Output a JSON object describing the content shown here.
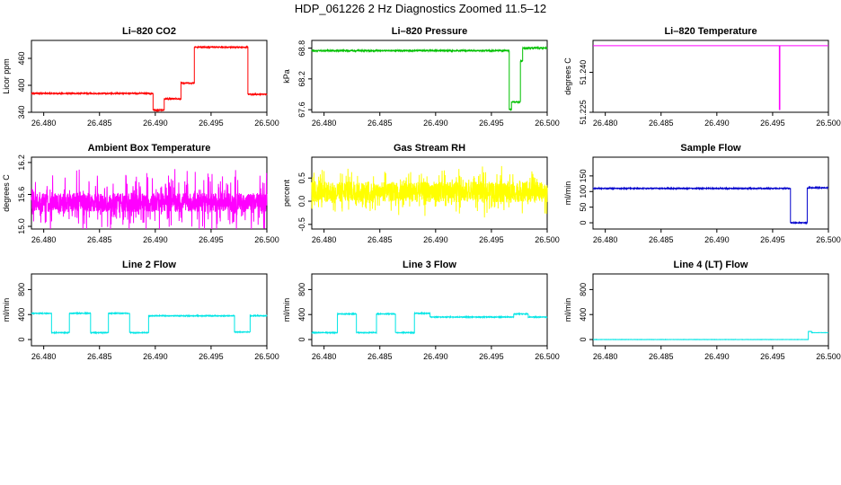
{
  "page": {
    "title": "HDP_061226  2 Hz Diagnostics Zoomed 11.5–12"
  },
  "chart_data": [
    {
      "type": "line",
      "title": "Li–820 CO2",
      "ylabel": "Licor ppm",
      "color": "#ff0000",
      "xlim": [
        26.4789,
        26.5
      ],
      "xticks": [
        "26.480",
        "26.485",
        "26.490",
        "26.495",
        "26.500"
      ],
      "xtick_values": [
        26.48,
        26.485,
        26.49,
        26.495,
        26.5
      ],
      "ylim": [
        340,
        500
      ],
      "yticks": [
        "340",
        "400",
        "460"
      ],
      "ytick_values": [
        340,
        400,
        460
      ],
      "noise": 1.2,
      "segments": [
        [
          26.4789,
          26.4898,
          382
        ],
        [
          26.4898,
          26.4908,
          345
        ],
        [
          26.4908,
          26.4923,
          370
        ],
        [
          26.4923,
          26.4935,
          405
        ],
        [
          26.4935,
          26.4983,
          485
        ],
        [
          26.4983,
          26.5,
          380
        ]
      ]
    },
    {
      "type": "line",
      "title": "Li–820 Pressure",
      "ylabel": "kPa",
      "color": "#00c000",
      "xlim": [
        26.4789,
        26.5
      ],
      "xticks": [
        "26.480",
        "26.485",
        "26.490",
        "26.495",
        "26.500"
      ],
      "xtick_values": [
        26.48,
        26.485,
        26.49,
        26.495,
        26.5
      ],
      "ylim": [
        67.55,
        68.95
      ],
      "yticks": [
        "67.6",
        "68.2",
        "68.8"
      ],
      "ytick_values": [
        67.6,
        68.2,
        68.8
      ],
      "noise": 0.012,
      "segments": [
        [
          26.4789,
          26.4966,
          68.75
        ],
        [
          26.4966,
          26.4968,
          67.6
        ],
        [
          26.4968,
          26.4976,
          67.75
        ],
        [
          26.4976,
          26.4978,
          68.55
        ],
        [
          26.4978,
          26.5,
          68.8
        ]
      ]
    },
    {
      "type": "line",
      "title": "Li–820 Temperature",
      "ylabel": "degrees C",
      "color": "#ff00ff",
      "xlim": [
        26.4789,
        26.5
      ],
      "xticks": [
        "26.480",
        "26.485",
        "26.490",
        "26.495",
        "26.500"
      ],
      "xtick_values": [
        26.48,
        26.485,
        26.49,
        26.495,
        26.5
      ],
      "ylim": [
        51.225,
        51.252
      ],
      "yticks": [
        "51.225",
        "51.240"
      ],
      "ytick_values": [
        51.225,
        51.24
      ],
      "noise": 0,
      "segments": [
        [
          26.4789,
          26.4956,
          51.25
        ],
        [
          26.4956,
          26.49565,
          51.226
        ],
        [
          26.49565,
          26.5,
          51.25
        ]
      ]
    },
    {
      "type": "line",
      "title": "Ambient Box Temperature",
      "ylabel": "degrees C",
      "color": "#ff00ff",
      "xlim": [
        26.4789,
        26.5
      ],
      "xticks": [
        "26.480",
        "26.485",
        "26.490",
        "26.495",
        "26.500"
      ],
      "xtick_values": [
        26.48,
        26.485,
        26.49,
        26.495,
        26.5
      ],
      "ylim": [
        14.95,
        16.3
      ],
      "yticks": [
        "15.0",
        "15.6",
        "16.2"
      ],
      "ytick_values": [
        15.0,
        15.6,
        16.2
      ],
      "noise": 0.18,
      "spike": 0.45,
      "segments": [
        [
          26.4789,
          26.5,
          15.45
        ]
      ]
    },
    {
      "type": "line",
      "title": "Gas Stream RH",
      "ylabel": "percent",
      "color": "#ffff00",
      "xlim": [
        26.4789,
        26.5
      ],
      "xticks": [
        "26.480",
        "26.485",
        "26.490",
        "26.495",
        "26.500"
      ],
      "xtick_values": [
        26.48,
        26.485,
        26.49,
        26.495,
        26.5
      ],
      "ylim": [
        -0.6,
        0.95
      ],
      "yticks": [
        "-0.5",
        "0.0",
        "0.5"
      ],
      "ytick_values": [
        -0.5,
        0.0,
        0.5
      ],
      "noise": 0.22,
      "spike": 0.35,
      "segments": [
        [
          26.4789,
          26.5,
          0.2
        ]
      ]
    },
    {
      "type": "line",
      "title": "Sample Flow",
      "ylabel": "ml/min",
      "color": "#0000cc",
      "xlim": [
        26.4789,
        26.5
      ],
      "xticks": [
        "26.480",
        "26.485",
        "26.490",
        "26.495",
        "26.500"
      ],
      "xtick_values": [
        26.48,
        26.485,
        26.49,
        26.495,
        26.5
      ],
      "ylim": [
        -20,
        210
      ],
      "yticks": [
        "0",
        "50",
        "100",
        "150"
      ],
      "ytick_values": [
        0,
        50,
        100,
        150
      ],
      "noise": 1.5,
      "segments": [
        [
          26.4789,
          26.4966,
          110
        ],
        [
          26.4966,
          26.4981,
          0
        ],
        [
          26.4981,
          26.5,
          112
        ]
      ]
    },
    {
      "type": "line",
      "title": "Line 2 Flow",
      "ylabel": "ml/min",
      "color": "#00e5e5",
      "xlim": [
        26.4789,
        26.5
      ],
      "xticks": [
        "26.480",
        "26.485",
        "26.490",
        "26.495",
        "26.500"
      ],
      "xtick_values": [
        26.48,
        26.485,
        26.49,
        26.495,
        26.5
      ],
      "ylim": [
        -100,
        1050
      ],
      "yticks": [
        "0",
        "400",
        "800"
      ],
      "ytick_values": [
        0,
        400,
        800
      ],
      "noise": 6,
      "segments": [
        [
          26.4789,
          26.4807,
          420
        ],
        [
          26.4807,
          26.4823,
          110
        ],
        [
          26.4823,
          26.4842,
          420
        ],
        [
          26.4842,
          26.4858,
          110
        ],
        [
          26.4858,
          26.4877,
          420
        ],
        [
          26.4877,
          26.4894,
          110
        ],
        [
          26.4894,
          26.4971,
          380
        ],
        [
          26.4971,
          26.4985,
          120
        ],
        [
          26.4985,
          26.5,
          380
        ]
      ]
    },
    {
      "type": "line",
      "title": "Line 3 Flow",
      "ylabel": "ml/min",
      "color": "#00e5e5",
      "xlim": [
        26.4789,
        26.5
      ],
      "xticks": [
        "26.480",
        "26.485",
        "26.490",
        "26.495",
        "26.500"
      ],
      "xtick_values": [
        26.48,
        26.485,
        26.49,
        26.495,
        26.5
      ],
      "ylim": [
        -100,
        1050
      ],
      "yticks": [
        "0",
        "400",
        "800"
      ],
      "ytick_values": [
        0,
        400,
        800
      ],
      "noise": 6,
      "segments": [
        [
          26.4789,
          26.4812,
          110
        ],
        [
          26.4812,
          26.4829,
          410
        ],
        [
          26.4829,
          26.4847,
          110
        ],
        [
          26.4847,
          26.4864,
          410
        ],
        [
          26.4864,
          26.4881,
          110
        ],
        [
          26.4881,
          26.4895,
          420
        ],
        [
          26.4895,
          26.497,
          360
        ],
        [
          26.497,
          26.4983,
          410
        ],
        [
          26.4983,
          26.5,
          360
        ]
      ]
    },
    {
      "type": "line",
      "title": "Line 4 (LT) Flow",
      "ylabel": "ml/min",
      "color": "#00e5e5",
      "xlim": [
        26.4789,
        26.5
      ],
      "xticks": [
        "26.480",
        "26.485",
        "26.490",
        "26.495",
        "26.500"
      ],
      "xtick_values": [
        26.48,
        26.485,
        26.49,
        26.495,
        26.5
      ],
      "ylim": [
        -100,
        1050
      ],
      "yticks": [
        "0",
        "400",
        "800"
      ],
      "ytick_values": [
        0,
        400,
        800
      ],
      "noise": 2,
      "segments": [
        [
          26.4789,
          26.4982,
          0
        ],
        [
          26.4982,
          26.4985,
          130
        ],
        [
          26.4985,
          26.5,
          110
        ]
      ]
    }
  ]
}
